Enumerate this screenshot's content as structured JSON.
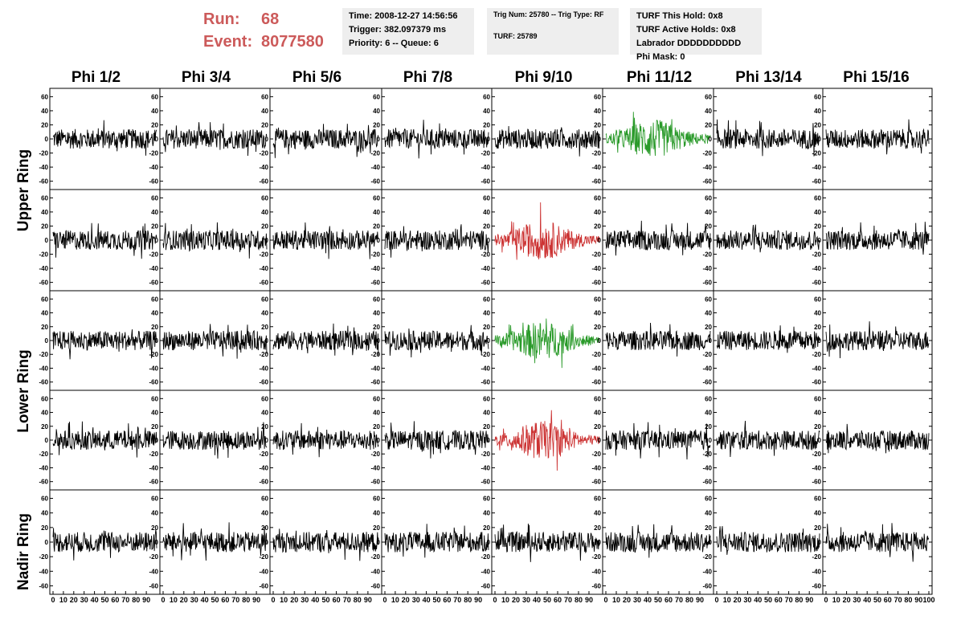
{
  "header": {
    "run_label": "Run:",
    "run_value": "68",
    "event_label": "Event:",
    "event_value": "8077580",
    "accent_color": "#cc5a5a"
  },
  "info_boxes": {
    "time": [
      "Time: 2008-12-27 14:56:56",
      "Trigger: 382.097379 ms",
      "Priority: 6 -- Queue: 6"
    ],
    "trig": [
      "Trig Num: 25780 -- Trig Type: RF",
      "TURF: 25789"
    ],
    "turf": [
      "TURF This Hold: 0x8",
      "TURF Active Holds: 0x8",
      "Labrador DDDDDDDDDD",
      "Phi Mask: 0"
    ]
  },
  "phi_headers": [
    "Phi 1/2",
    "Phi 3/4",
    "Phi 5/6",
    "Phi 7/8",
    "Phi 9/10",
    "Phi 11/12",
    "Phi 13/14",
    "Phi 15/16"
  ],
  "ring_labels": [
    "Upper Ring",
    "Lower Ring",
    "Nadir Ring"
  ],
  "chart_data": {
    "type": "line",
    "y_ticks": [
      "60",
      "40",
      "20",
      "0",
      "-20",
      "-40",
      "-60"
    ],
    "x_ticks": [
      "0",
      "10",
      "20",
      "30",
      "40",
      "50",
      "60",
      "70",
      "80",
      "90",
      "100"
    ],
    "ylim": [
      -65,
      65
    ],
    "xlim": [
      0,
      100
    ],
    "highlight_colors": {
      "green": "#2a9a2a",
      "red": "#cc3333",
      "default": "#000000"
    },
    "highlights": [
      {
        "row": 0,
        "col": 5,
        "color": "green"
      },
      {
        "row": 1,
        "col": 4,
        "color": "red"
      },
      {
        "row": 2,
        "col": 4,
        "color": "green"
      },
      {
        "row": 3,
        "col": 4,
        "color": "red"
      }
    ]
  }
}
